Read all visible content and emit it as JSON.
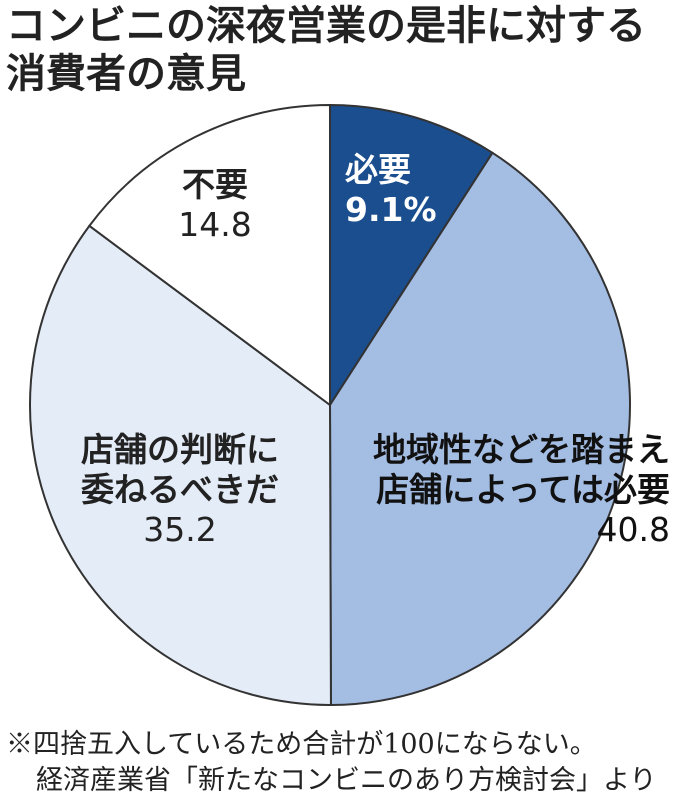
{
  "chart_data": {
    "type": "pie",
    "title": "コンビニの深夜営業の是非に対する消費者の意見",
    "categories": [
      "必要",
      "地域性などを踏まえ\n店舗によっては必要",
      "店舗の判断に\n委ねるべきだ",
      "不要"
    ],
    "values": [
      9.1,
      40.8,
      35.2,
      14.8
    ],
    "value_labels": [
      "9.1%",
      "40.8",
      "35.2",
      "14.8"
    ],
    "colors": [
      "#1b4e8e",
      "#a4bde3",
      "#e4ecf8",
      "#ffffff"
    ],
    "notes": [
      "※四捨五入しているため合計が100にならない。",
      "経済産業省「新たなコンビニのあり方検討会」より"
    ]
  }
}
